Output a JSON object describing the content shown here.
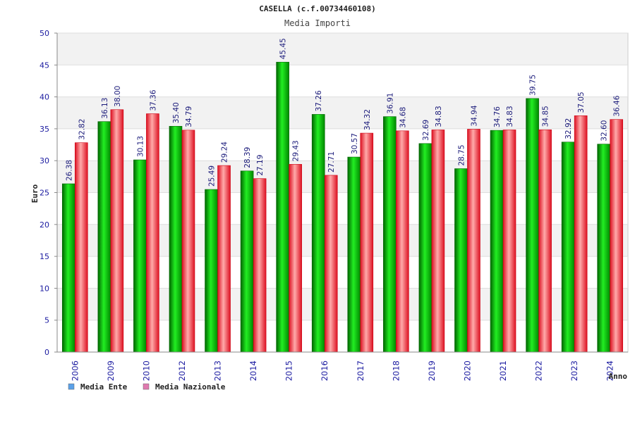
{
  "chart_data": {
    "type": "bar",
    "title": "CASELLA (c.f.00734460108)",
    "subtitle": "Media Importi",
    "xlabel": "Anno",
    "ylabel": "Euro",
    "ylim": [
      0,
      50
    ],
    "yticks": [
      "0",
      "5",
      "10",
      "15",
      "20",
      "25",
      "30",
      "35",
      "40",
      "45",
      "50"
    ],
    "grid": true,
    "legend_position": "bottom-left",
    "categories": [
      "2006",
      "2009",
      "2010",
      "2012",
      "2013",
      "2014",
      "2015",
      "2016",
      "2017",
      "2018",
      "2019",
      "2020",
      "2021",
      "2022",
      "2023",
      "2024"
    ],
    "series": [
      {
        "name": "Media Ente",
        "color": "#00aa00",
        "legend_color": "#5aa0e8",
        "values": [
          26.38,
          36.13,
          30.13,
          35.4,
          25.49,
          28.39,
          45.45,
          37.26,
          30.57,
          36.91,
          32.69,
          28.75,
          34.76,
          39.75,
          32.92,
          32.6
        ],
        "labels": [
          "26.38",
          "36.13",
          "30.13",
          "35.40",
          "25.49",
          "28.39",
          "45.45",
          "37.26",
          "30.57",
          "36.91",
          "32.69",
          "28.75",
          "34.76",
          "39.75",
          "32.92",
          "32.60"
        ]
      },
      {
        "name": "Media Nazionale",
        "color": "#e81c2c",
        "legend_color": "#e07ab0",
        "values": [
          32.82,
          38.0,
          37.36,
          34.79,
          29.24,
          27.19,
          29.43,
          27.71,
          34.32,
          34.68,
          34.83,
          34.94,
          34.83,
          34.85,
          37.05,
          36.46
        ],
        "labels": [
          "32.82",
          "38.00",
          "37.36",
          "34.79",
          "29.24",
          "27.19",
          "29.43",
          "27.71",
          "34.32",
          "34.68",
          "34.83",
          "34.94",
          "34.83",
          "34.85",
          "37.05",
          "36.46"
        ]
      }
    ]
  }
}
